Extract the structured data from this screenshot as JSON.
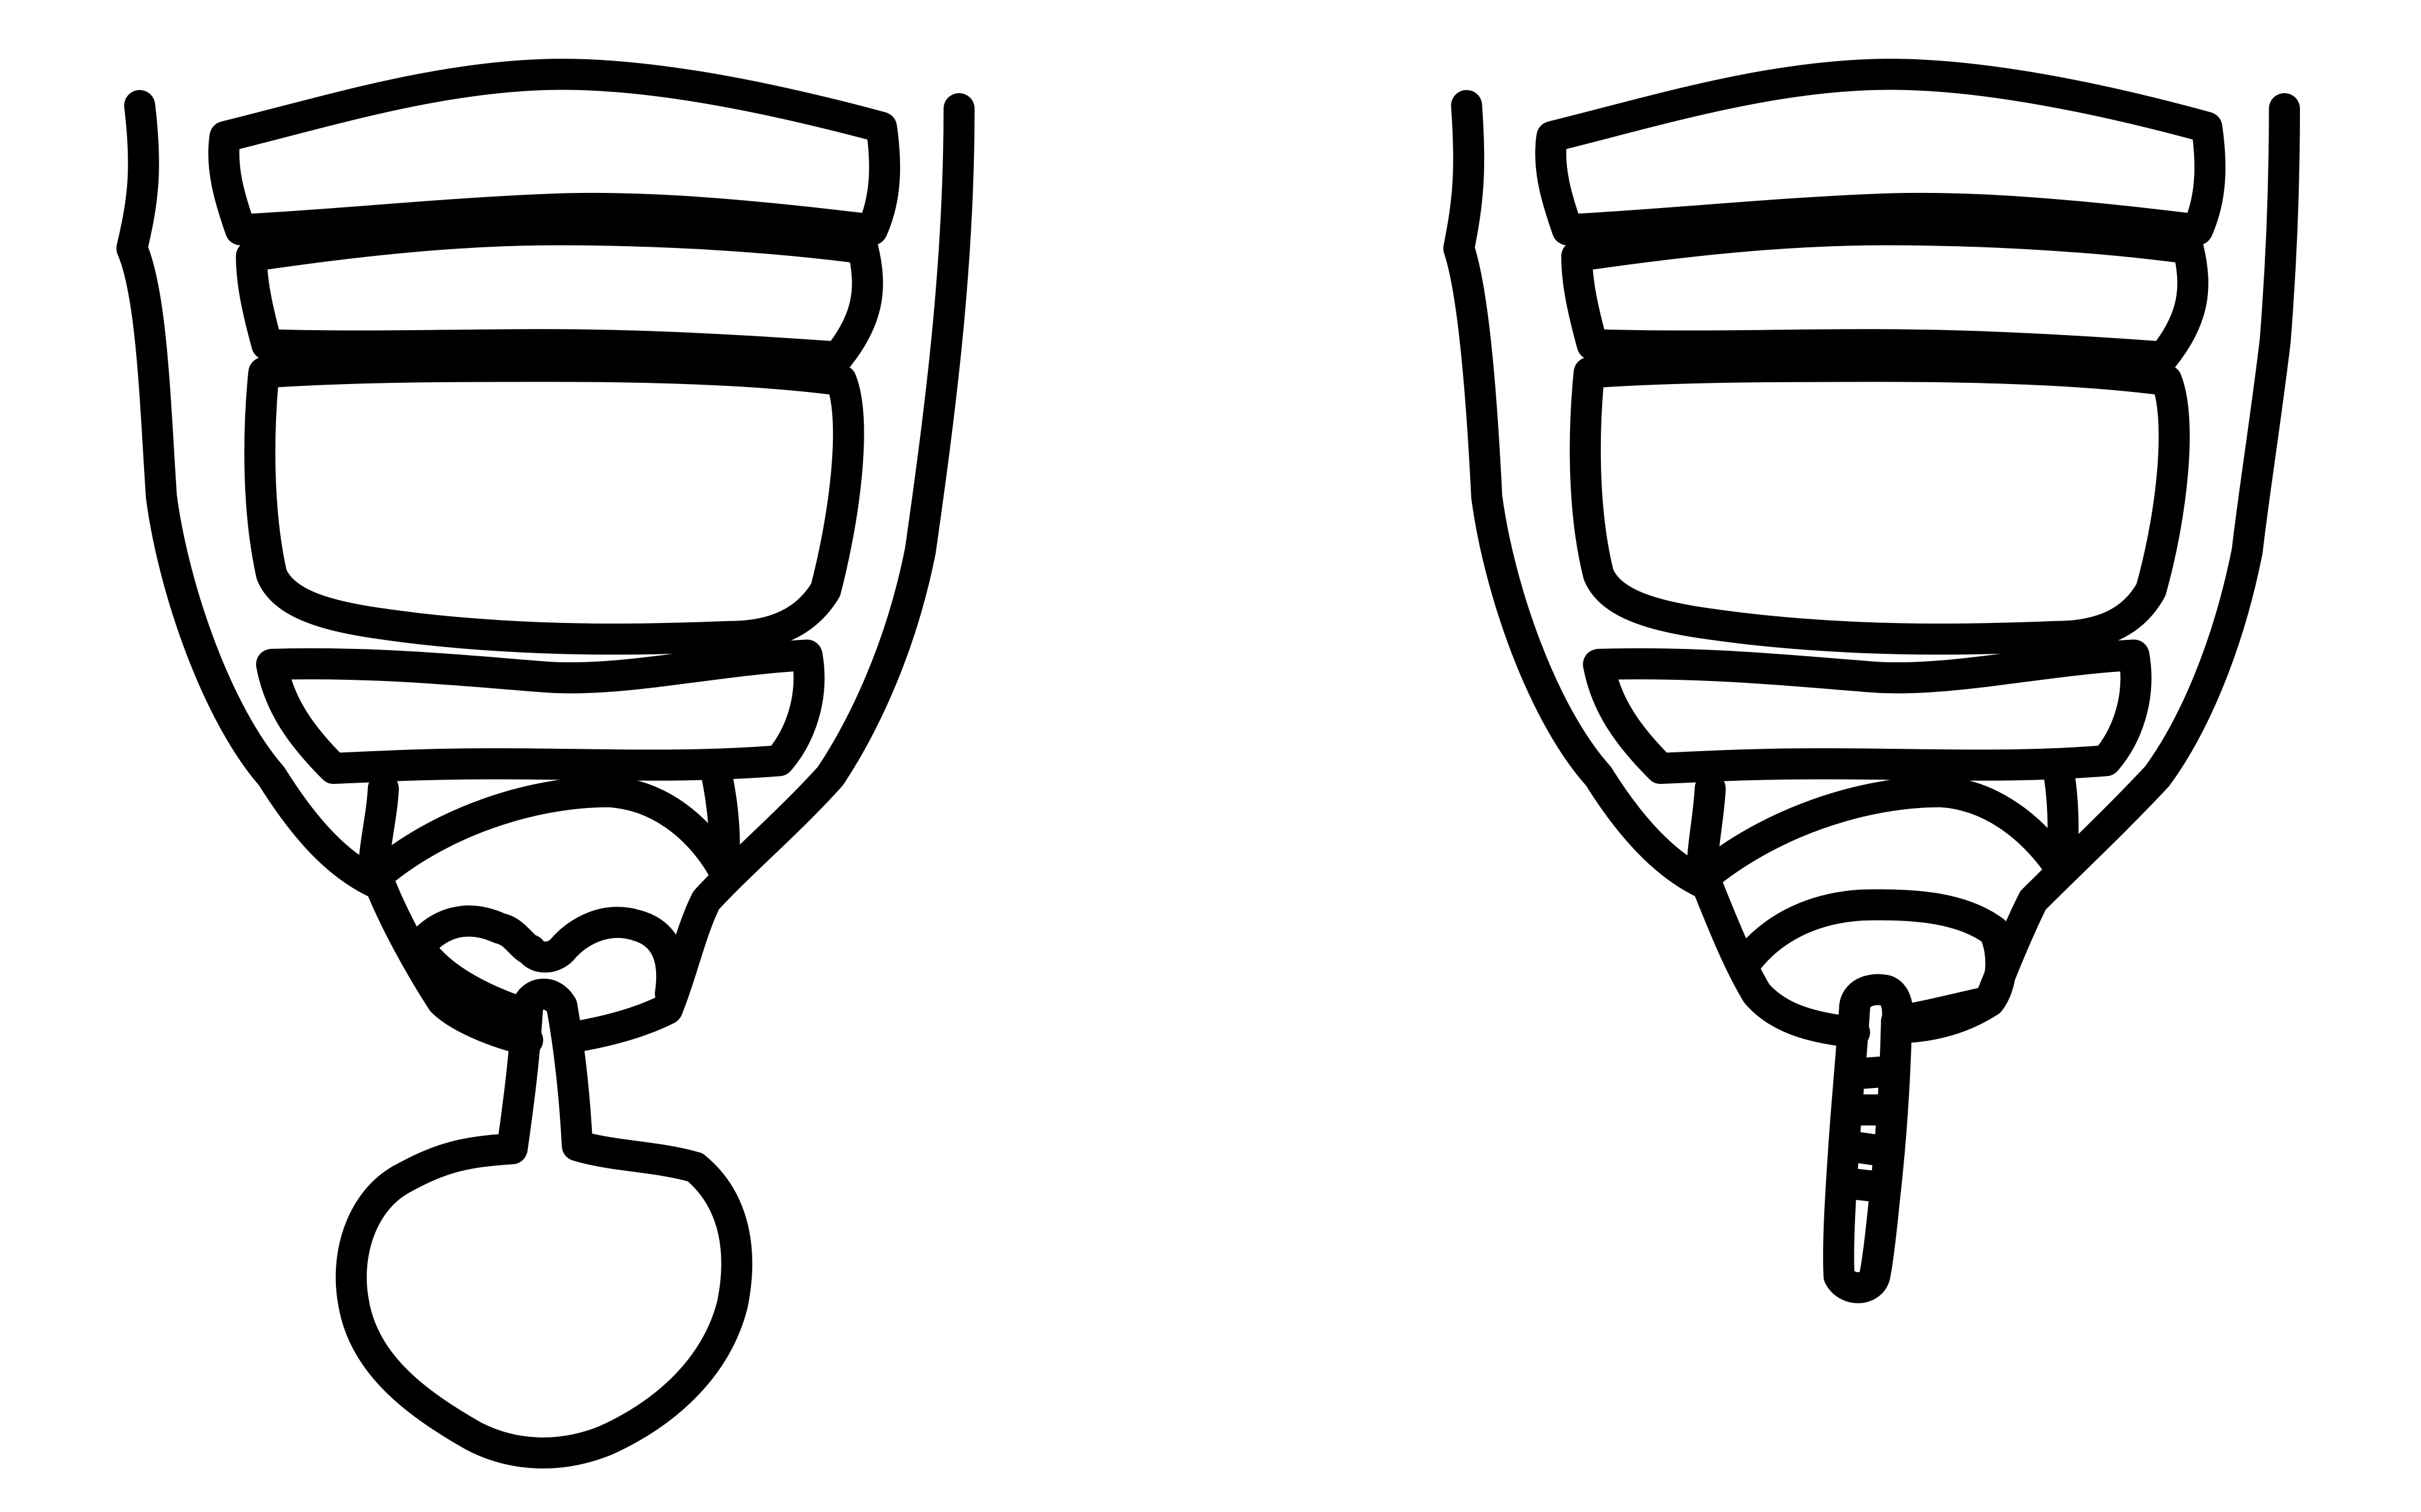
{
  "figure": {
    "background_color": "#ffffff",
    "line_color": "#000000",
    "panels": [
      {
        "key": "left",
        "tip_structure": "bulbous-lobed-appendage"
      },
      {
        "key": "right",
        "tip_structure": "segmented-rod-appendage",
        "rod_segments": 5
      }
    ]
  }
}
